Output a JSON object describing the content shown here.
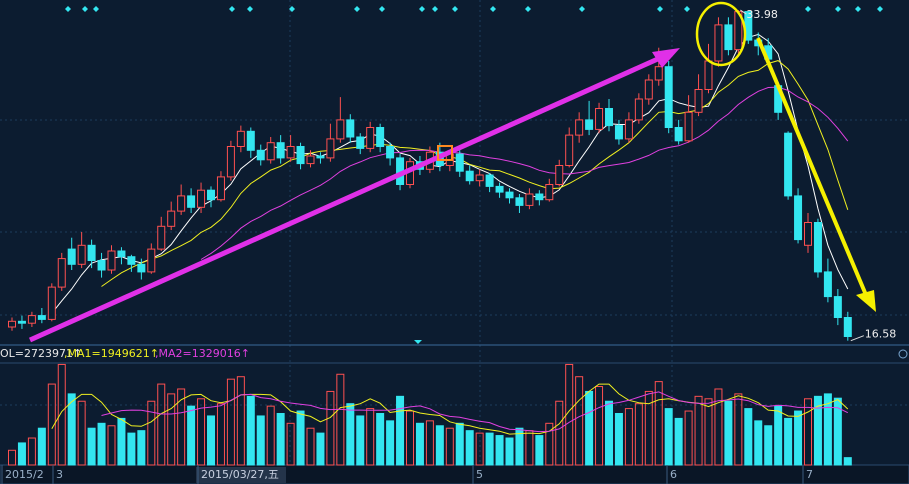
{
  "chart_data": {
    "type": "candlestick",
    "open": [
      17.3,
      17.6,
      17.5,
      17.9,
      17.7,
      19.4,
      21.4,
      20.6,
      21.6,
      20.8,
      20.3,
      21.3,
      21.0,
      20.6,
      20.2,
      21.4,
      22.6,
      23.4,
      24.2,
      23.6,
      24.5,
      24.0,
      25.2,
      26.8,
      27.6,
      26.6,
      26.1,
      27.0,
      26.2,
      26.8,
      25.9,
      26.3,
      26.2,
      27.2,
      28.2,
      27.3,
      26.7,
      27.8,
      26.8,
      26.2,
      24.8,
      26.0,
      25.6,
      26.5,
      25.8,
      26.4,
      25.5,
      25.0,
      25.3,
      24.7,
      24.4,
      24.1,
      23.7,
      24.3,
      24.0,
      24.8,
      25.8,
      27.4,
      28.2,
      27.7,
      28.8,
      27.9,
      27.2,
      28.2,
      29.3,
      30.3,
      31.0,
      27.8,
      27.1,
      28.6,
      29.8,
      31.3,
      33.2,
      31.9,
      33.9,
      32.4,
      32.1,
      30.0,
      27.5,
      24.2,
      21.6,
      22.8,
      20.2,
      18.9,
      17.8
    ],
    "high": [
      17.8,
      17.9,
      18.1,
      18.3,
      19.6,
      21.2,
      22.0,
      22.3,
      21.9,
      21.2,
      21.6,
      21.5,
      21.1,
      20.9,
      21.7,
      23.1,
      23.9,
      24.8,
      24.6,
      24.9,
      24.7,
      25.5,
      27.1,
      27.9,
      27.8,
      26.9,
      27.3,
      27.4,
      27.4,
      27.0,
      26.6,
      26.5,
      28.0,
      29.4,
      28.5,
      27.5,
      28.1,
      28.0,
      27.0,
      26.4,
      26.2,
      26.3,
      26.8,
      27.0,
      26.6,
      26.6,
      25.8,
      25.6,
      25.4,
      24.9,
      24.6,
      24.3,
      24.6,
      24.5,
      25.1,
      26.1,
      27.8,
      28.6,
      29.2,
      29.1,
      29.3,
      28.2,
      28.6,
      29.6,
      30.6,
      32.0,
      31.3,
      28.2,
      29.5,
      30.6,
      32.2,
      33.6,
      33.6,
      33.98,
      33.9,
      32.8,
      32.5,
      30.2,
      27.6,
      24.6,
      23.3,
      23.0,
      20.9,
      19.3,
      18.1
    ],
    "low": [
      17.1,
      17.2,
      17.3,
      17.5,
      17.6,
      19.2,
      20.3,
      20.4,
      20.4,
      19.9,
      20.1,
      20.6,
      20.2,
      19.8,
      20.1,
      21.3,
      22.4,
      23.2,
      23.3,
      23.3,
      23.6,
      23.9,
      25.0,
      26.5,
      26.2,
      25.8,
      25.9,
      25.9,
      26.0,
      25.6,
      25.7,
      25.9,
      26.0,
      27.0,
      27.0,
      26.4,
      26.5,
      26.5,
      25.8,
      24.5,
      24.6,
      25.3,
      25.4,
      25.5,
      25.5,
      25.2,
      24.8,
      24.7,
      24.4,
      24.1,
      23.8,
      23.3,
      23.5,
      23.7,
      23.9,
      24.7,
      25.7,
      27.0,
      27.4,
      27.5,
      27.6,
      26.9,
      27.0,
      28.0,
      29.0,
      30.0,
      27.5,
      26.9,
      27.0,
      28.4,
      29.6,
      31.0,
      31.6,
      31.7,
      32.2,
      31.6,
      31.0,
      28.2,
      24.0,
      21.7,
      21.2,
      19.9,
      18.6,
      17.4,
      16.58
    ],
    "close": [
      17.6,
      17.5,
      17.9,
      17.7,
      19.4,
      20.9,
      20.6,
      21.6,
      20.8,
      20.3,
      21.3,
      21.0,
      20.6,
      20.2,
      21.4,
      22.6,
      23.4,
      24.2,
      23.6,
      24.5,
      24.0,
      25.2,
      26.8,
      27.6,
      26.6,
      26.1,
      27.0,
      26.2,
      26.8,
      25.9,
      26.3,
      26.2,
      27.2,
      28.2,
      27.3,
      26.7,
      27.8,
      26.8,
      26.2,
      24.8,
      26.0,
      25.6,
      26.5,
      25.8,
      26.4,
      25.5,
      25.0,
      25.3,
      24.7,
      24.4,
      24.1,
      23.7,
      24.3,
      24.0,
      24.8,
      25.8,
      27.4,
      28.2,
      27.7,
      28.8,
      27.9,
      27.2,
      28.2,
      29.3,
      30.3,
      31.0,
      27.8,
      27.1,
      28.6,
      29.8,
      31.3,
      33.2,
      31.9,
      33.9,
      32.4,
      32.1,
      31.4,
      28.6,
      24.2,
      21.9,
      22.8,
      20.2,
      18.9,
      17.8,
      16.8
    ],
    "volume": [
      600000,
      900000,
      1100000,
      1500000,
      3300000,
      4100000,
      2900000,
      2600000,
      1500000,
      1700000,
      1600000,
      1900000,
      1300000,
      1400000,
      2600000,
      3300000,
      2900000,
      3100000,
      2400000,
      2700000,
      2000000,
      2500000,
      3500000,
      3600000,
      2800000,
      2000000,
      2400000,
      2100000,
      1700000,
      2200000,
      1500000,
      1300000,
      3000000,
      3700000,
      2500000,
      2000000,
      2300000,
      2100000,
      1800000,
      2800000,
      2200000,
      1700000,
      1800000,
      1600000,
      1500000,
      1700000,
      1400000,
      1300000,
      1300000,
      1200000,
      1100000,
      1500000,
      1400000,
      1200000,
      1700000,
      2600000,
      4100000,
      3600000,
      3000000,
      3200000,
      2600000,
      2100000,
      2300000,
      2500000,
      3000000,
      3400000,
      2300000,
      1900000,
      2200000,
      2800000,
      2700000,
      3100000,
      2600000,
      2900000,
      2300000,
      1800000,
      1600000,
      2400000,
      1900000,
      2200000,
      2700000,
      2800000,
      2900000,
      2723971,
      300000
    ],
    "ylim": [
      16.3,
      34.3
    ],
    "vlim": [
      0,
      4200000
    ],
    "up_color": "#ff5050",
    "down_color": "#33e6f0",
    "volume_legend": [
      "OL=2723971↑",
      ",MA1=1949621↑",
      ",MA2=1329016↑"
    ],
    "x_labels": [
      "2015/2",
      "3",
      "2015/03/27,五",
      "5",
      "6",
      "7"
    ]
  }
}
